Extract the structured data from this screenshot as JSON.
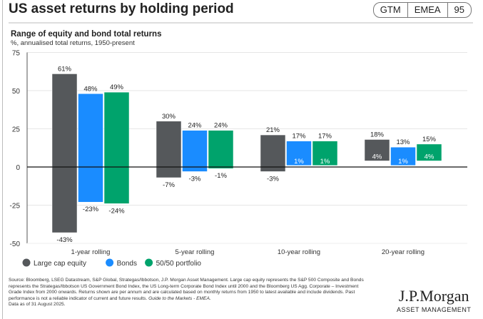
{
  "header": {
    "title": "US asset returns by holding period",
    "badge": [
      "GTM",
      "EMEA",
      "95"
    ]
  },
  "colors": {
    "Large cap equity": "#55585b",
    "Bonds": "#1a8cff",
    "50/50 portfolio": "#00a36c"
  },
  "chart_data": {
    "type": "bar",
    "subtype": "floating-range",
    "title": "Range of equity and bond total returns",
    "subtitle": "%, annualised total returns, 1950-present",
    "categories": [
      "1-year rolling",
      "5-year rolling",
      "10-year rolling",
      "20-year rolling"
    ],
    "series": [
      {
        "name": "Large cap equity",
        "max": [
          61,
          30,
          21,
          18
        ],
        "min": [
          -43,
          -7,
          -3,
          4
        ]
      },
      {
        "name": "Bonds",
        "max": [
          48,
          24,
          17,
          13
        ],
        "min": [
          -23,
          -3,
          1,
          1
        ]
      },
      {
        "name": "50/50 portfolio",
        "max": [
          49,
          24,
          17,
          15
        ],
        "min": [
          -24,
          -1,
          1,
          4
        ]
      }
    ],
    "yticks": [
      75,
      50,
      25,
      0,
      -25,
      -50
    ],
    "ylim": [
      -50,
      75
    ],
    "grid": true,
    "legend": "bottom-left"
  },
  "footer": {
    "source": "Source: Bloomberg, LSEG Datastream, S&P Global, Strategas/Ibbotson, J.P. Morgan Asset Management. Large cap equity represents the S&P 500 Composite and Bonds represents the Strategas/Ibbotson US Government Bond Index, the US Long-term Corporate Bond Index until 2000 and the Bloomberg US Agg. Corporate – Investment Grade Index from 2000 onwards. Returns shown are per annum and are calculated based on monthly returns from 1950 to latest available and include dividends. Past performance is not a reliable indicator of current and future results. ",
    "guide": "Guide to the Markets - EMEA.",
    "date": "Data as of 31 August 2025.",
    "logo": "J.P.Morgan",
    "logo_sub": "ASSET MANAGEMENT"
  }
}
